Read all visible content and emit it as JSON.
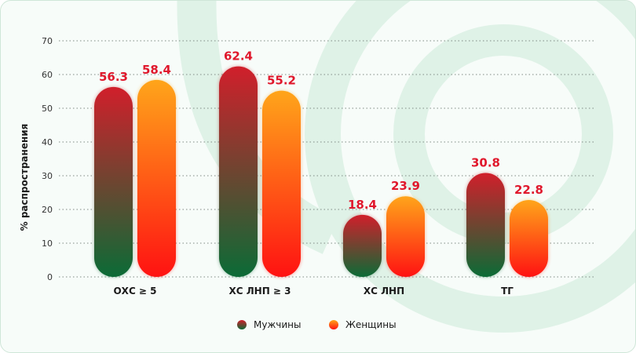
{
  "colors": {
    "male_top": "#d11f2b",
    "male_bottom": "#0b6b36",
    "female_top": "#ffa51a",
    "female_bottom": "#ff1212",
    "value_label": "#e0182c",
    "grid": "#7f8a84",
    "background": "#f7fcf9",
    "decor": "#dff2e7"
  },
  "chart_data": {
    "type": "bar",
    "ylabel": "% распространения",
    "xlabel": "",
    "ylim": [
      0,
      70
    ],
    "yticks": [
      0,
      10,
      20,
      30,
      40,
      50,
      60,
      70
    ],
    "grid": true,
    "legend_position": "bottom-center",
    "categories": [
      "ОХС ≥ 5",
      "ХС ЛНП ≥ 3",
      "ХС ЛНП",
      "ТГ"
    ],
    "series": [
      {
        "name": "Мужчины",
        "values": [
          56.3,
          62.4,
          18.4,
          30.8
        ]
      },
      {
        "name": "Женщины",
        "values": [
          58.4,
          55.2,
          23.9,
          22.8
        ]
      }
    ]
  }
}
